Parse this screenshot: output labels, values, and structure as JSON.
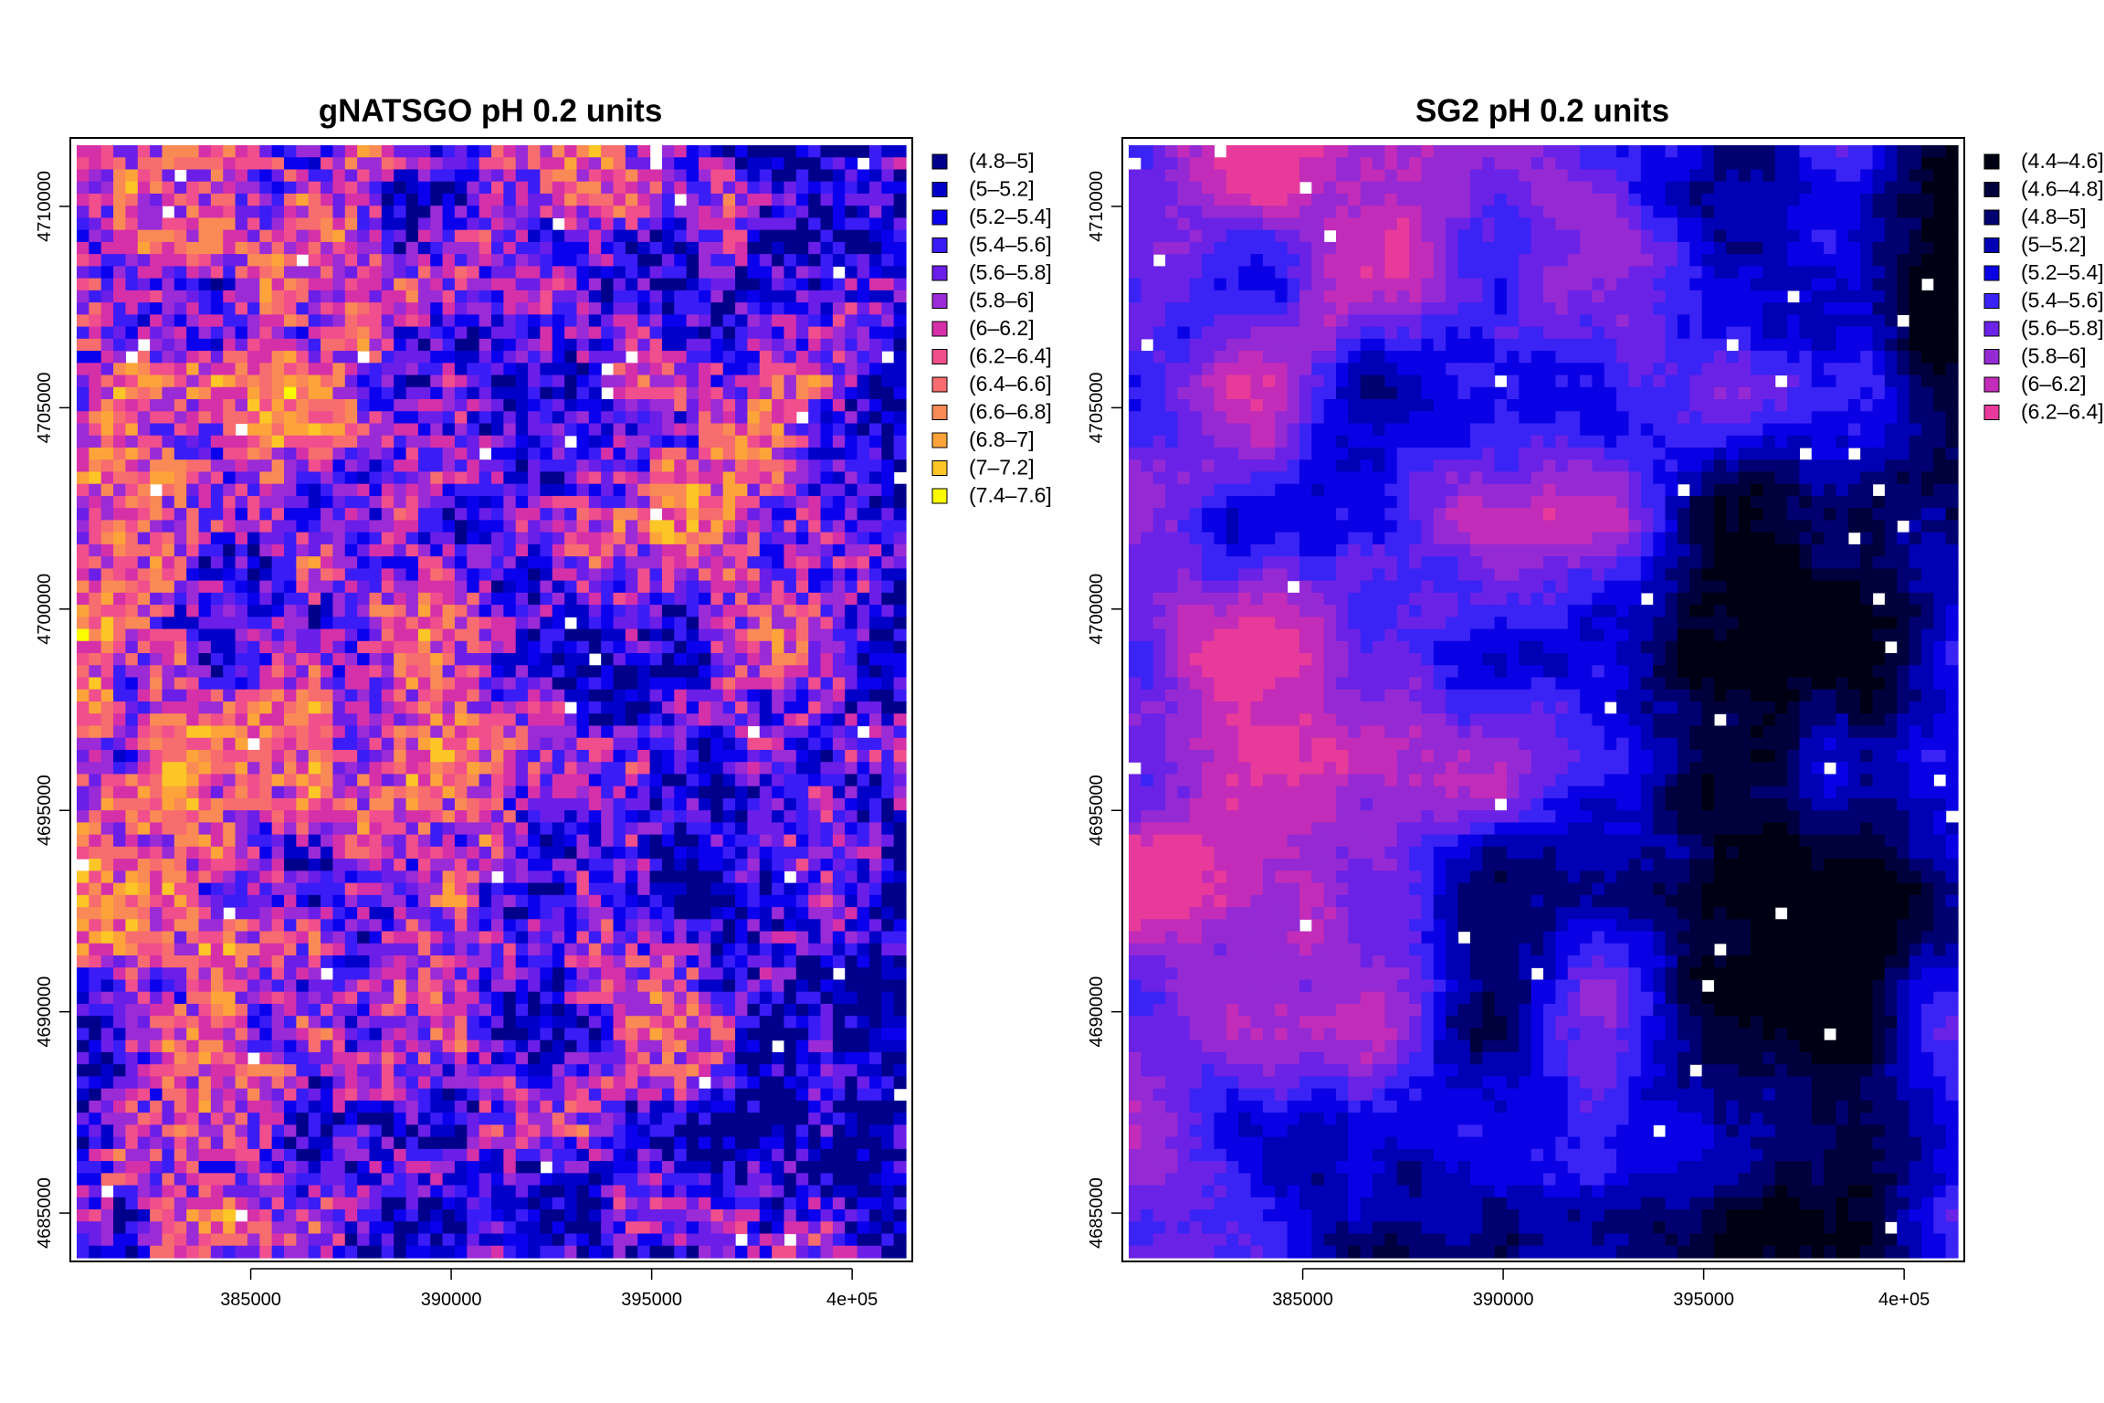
{
  "chart_data": [
    {
      "type": "heatmap",
      "title": "gNATSGO pH 0.2 units",
      "xlabel": "",
      "ylabel": "",
      "xlim": [
        380500,
        401500
      ],
      "ylim": [
        4683800,
        4711700
      ],
      "xticks": [
        385000,
        390000,
        395000,
        400000
      ],
      "xtick_labels": [
        "385000",
        "390000",
        "395000",
        "4e+05"
      ],
      "yticks": [
        4685000,
        4690000,
        4695000,
        4700000,
        4705000,
        4710000
      ],
      "ytick_labels": [
        "4685000",
        "4690000",
        "4695000",
        "4700000",
        "4705000",
        "4710000"
      ],
      "legend_placement": "right",
      "legend": [
        {
          "label": "(4.8–5]",
          "color": "#00008b"
        },
        {
          "label": "(5–5.2]",
          "color": "#0000c8"
        },
        {
          "label": "(5.2–5.4]",
          "color": "#0a00ee"
        },
        {
          "label": "(5.4–5.6]",
          "color": "#3a1cf7"
        },
        {
          "label": "(5.6–5.8]",
          "color": "#6a1ee8"
        },
        {
          "label": "(5.8–6]",
          "color": "#9a2bd6"
        },
        {
          "label": "(6–6.2]",
          "color": "#d630a8"
        },
        {
          "label": "(6.2–6.4]",
          "color": "#f04e8c"
        },
        {
          "label": "(6.4–6.6]",
          "color": "#f76c6e"
        },
        {
          "label": "(6.6–6.8]",
          "color": "#fa8a55"
        },
        {
          "label": "(6.8–7]",
          "color": "#fca439"
        },
        {
          "label": "(7–7.2]",
          "color": "#fcc626"
        },
        {
          "label": "(7.4–7.6]",
          "color": "#fcfc00"
        }
      ]
    },
    {
      "type": "heatmap",
      "title": "SG2 pH 0.2 units",
      "xlabel": "",
      "ylabel": "",
      "xlim": [
        380500,
        401500
      ],
      "ylim": [
        4683800,
        4711700
      ],
      "xticks": [
        385000,
        390000,
        395000,
        400000
      ],
      "xtick_labels": [
        "385000",
        "390000",
        "395000",
        "4e+05"
      ],
      "yticks": [
        4685000,
        4690000,
        4695000,
        4700000,
        4705000,
        4710000
      ],
      "ytick_labels": [
        "4685000",
        "4690000",
        "4695000",
        "4700000",
        "4705000",
        "4710000"
      ],
      "legend_placement": "right",
      "legend": [
        {
          "label": "(4.4–4.6]",
          "color": "#000014"
        },
        {
          "label": "(4.6–4.8]",
          "color": "#00003c"
        },
        {
          "label": "(4.8–5]",
          "color": "#000070"
        },
        {
          "label": "(5–5.2]",
          "color": "#0000b4"
        },
        {
          "label": "(5.2–5.4]",
          "color": "#0a00e6"
        },
        {
          "label": "(5.4–5.6]",
          "color": "#3a24f5"
        },
        {
          "label": "(5.6–5.8]",
          "color": "#6a22e6"
        },
        {
          "label": "(5.8–6]",
          "color": "#952ad4"
        },
        {
          "label": "(6–6.2]",
          "color": "#c22cb8"
        },
        {
          "label": "(6.2–6.4]",
          "color": "#e83a9a"
        }
      ]
    }
  ]
}
